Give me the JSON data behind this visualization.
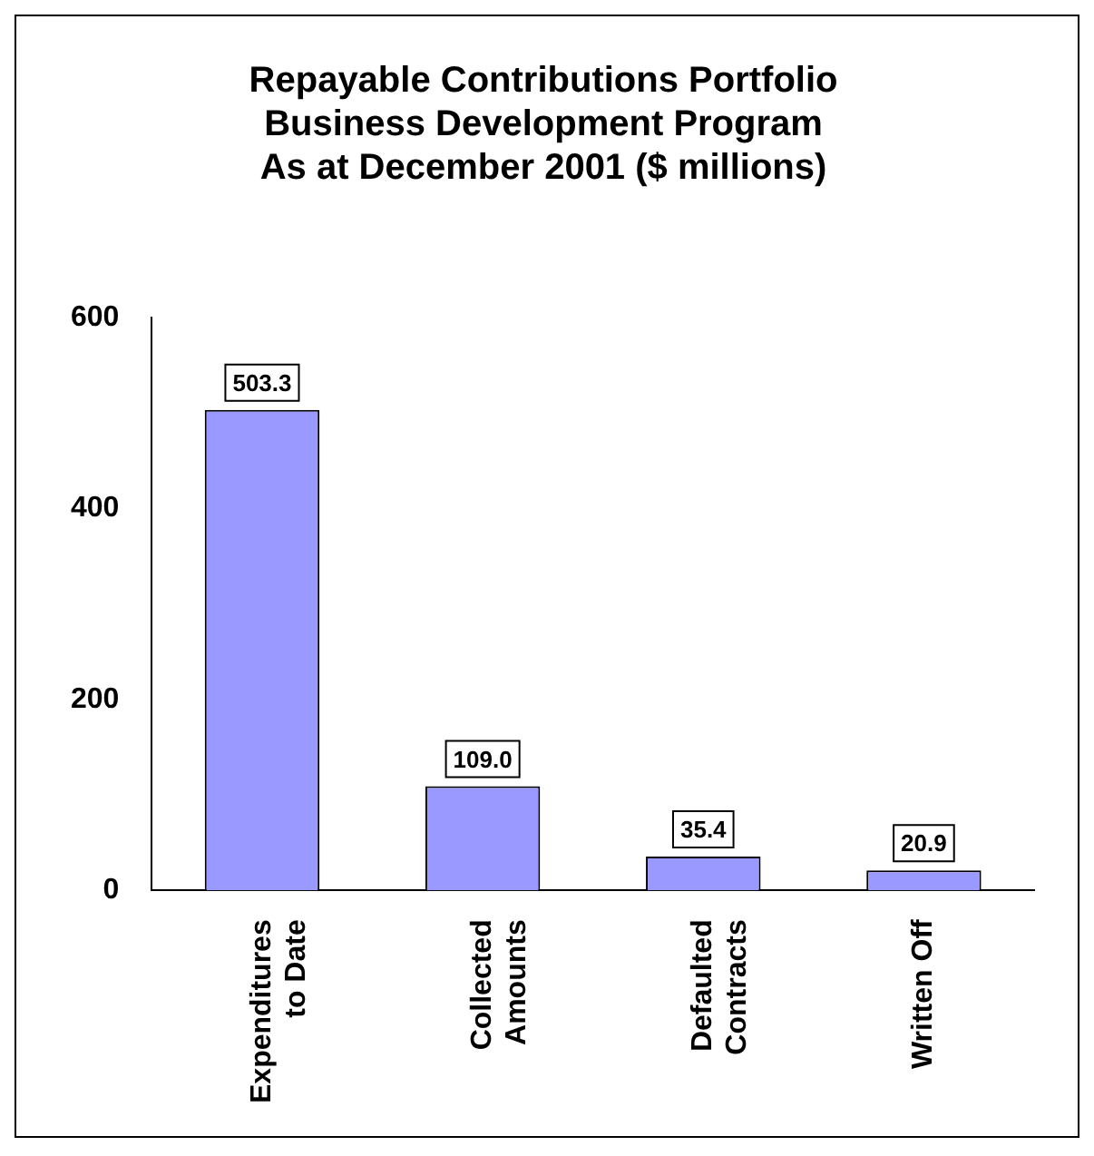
{
  "chart_data": {
    "type": "bar",
    "title": "Repayable Contributions Portfolio\nBusiness Development Program\nAs at December 2001 ($ millions)",
    "categories": [
      "Expenditures to Date",
      "Collected Amounts",
      "Defaulted Contracts",
      "Written Off"
    ],
    "values": [
      503.3,
      109.0,
      35.4,
      20.9
    ],
    "value_labels": [
      "503.3",
      "109.0",
      "35.4",
      "20.9"
    ],
    "color": "#9999ff",
    "ylim": [
      0,
      600
    ],
    "yticks": [
      0,
      200,
      400,
      600
    ],
    "grid": false,
    "legend": false
  }
}
